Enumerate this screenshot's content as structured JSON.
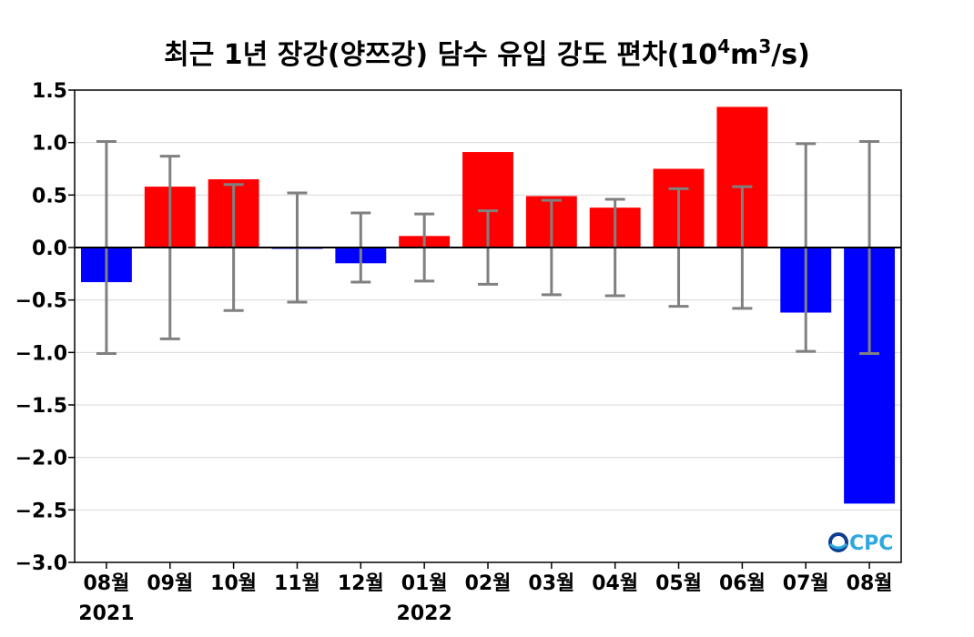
{
  "chart_data": {
    "type": "bar",
    "title_main": "최근 1년 장강(양쯔강) 담수 유입 강도 편차(10",
    "title_sup1": "4",
    "title_mid": "m",
    "title_sup2": "3",
    "title_end": "/s)",
    "categories": [
      "08월",
      "09월",
      "10월",
      "11월",
      "12월",
      "01월",
      "02월",
      "03월",
      "04월",
      "05월",
      "06월",
      "07월",
      "08월"
    ],
    "year_labels": [
      {
        "index": 0,
        "label": "2021"
      },
      {
        "index": 5,
        "label": "2022"
      }
    ],
    "values": [
      -0.33,
      0.58,
      0.65,
      -0.01,
      -0.15,
      0.11,
      0.91,
      0.49,
      0.38,
      0.75,
      1.34,
      -0.62,
      -2.44
    ],
    "error_bars": [
      1.01,
      0.87,
      0.6,
      0.52,
      0.33,
      0.32,
      0.35,
      0.45,
      0.46,
      0.56,
      0.58,
      0.99,
      1.01
    ],
    "ylim": [
      -3.0,
      1.5
    ],
    "yticks": [
      "1.5",
      "1.0",
      "0.5",
      "0.0",
      "−0.5",
      "−1.0",
      "−1.5",
      "−2.0",
      "−2.5",
      "−3.0"
    ],
    "ytick_values": [
      1.5,
      1.0,
      0.5,
      0.0,
      -0.5,
      -1.0,
      -1.5,
      -2.0,
      -2.5,
      -3.0
    ],
    "grid": true,
    "xlabel": "",
    "ylabel": "",
    "colors": {
      "positive": "#ff0000",
      "negative": "#0000ff",
      "near_zero": "#8080ff",
      "error_bar": "#808080",
      "grid": "#d8d8d8",
      "zero_line": "#000000"
    }
  },
  "logo": {
    "text": "CPC",
    "color_dark": "#0b3d91",
    "color_light": "#2fa8e0"
  }
}
